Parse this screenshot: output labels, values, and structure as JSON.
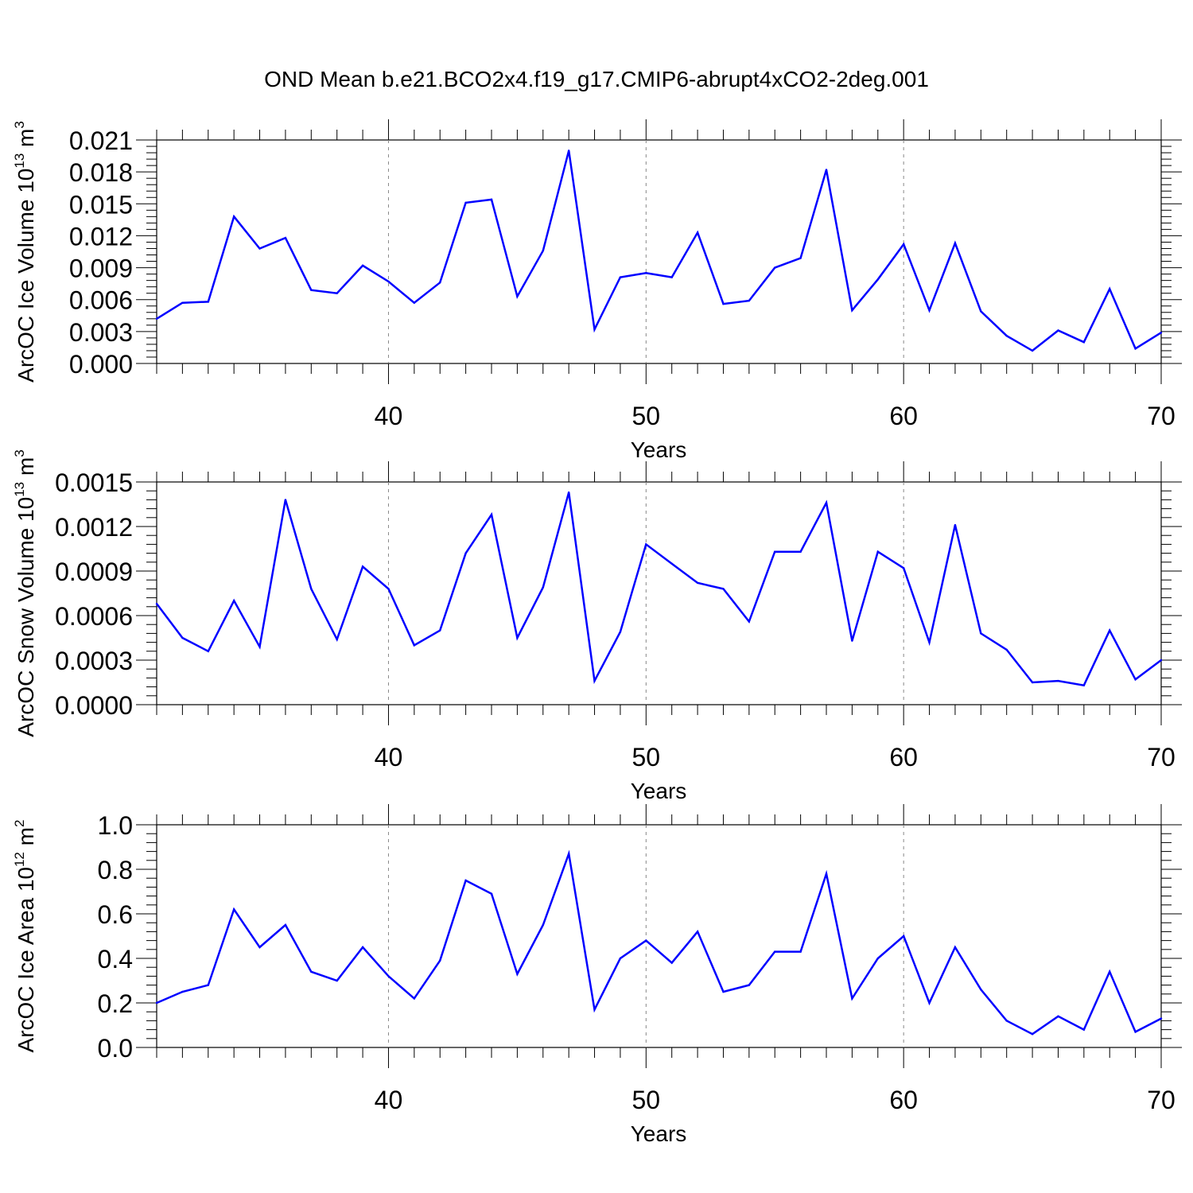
{
  "figure": {
    "title": "OND Mean b.e21.BCO2x4.f19_g17.CMIP6-abrupt4xCO2-2deg.001",
    "line_color": "#0000ff"
  },
  "chart_data": [
    {
      "type": "line",
      "ylabel": "ArcOC Ice Volume 10",
      "ylabel_sup": "13",
      "ylabel_unit": " m",
      "ylabel_unit_sup": "3",
      "xlabel": "Years",
      "xlim": [
        31,
        70
      ],
      "ylim": [
        0,
        0.021
      ],
      "yticks": [
        0,
        0.003,
        0.006,
        0.009,
        0.012,
        0.015,
        0.018,
        0.021
      ],
      "ytick_labels": [
        "0.000",
        "0.003",
        "0.006",
        "0.009",
        "0.012",
        "0.015",
        "0.018",
        "0.021"
      ],
      "xticks": [
        40,
        50,
        60,
        70
      ],
      "xtick_labels": [
        "40",
        "50",
        "60",
        "70"
      ],
      "x": [
        31,
        32,
        33,
        34,
        35,
        36,
        37,
        38,
        39,
        40,
        41,
        42,
        43,
        44,
        45,
        46,
        47,
        48,
        49,
        50,
        51,
        52,
        53,
        54,
        55,
        56,
        57,
        58,
        59,
        60,
        61,
        62,
        63,
        64,
        65,
        66,
        67,
        68,
        69,
        70
      ],
      "series": [
        {
          "values": [
            0.0042,
            0.0057,
            0.0058,
            0.0138,
            0.0108,
            0.0118,
            0.0069,
            0.0066,
            0.0092,
            0.0077,
            0.0057,
            0.0076,
            0.0151,
            0.0154,
            0.0063,
            0.0106,
            0.02,
            0.0032,
            0.0081,
            0.0085,
            0.0081,
            0.0123,
            0.0056,
            0.0059,
            0.009,
            0.0099,
            0.0182,
            0.005,
            0.0079,
            0.0112,
            0.005,
            0.0113,
            0.0049,
            0.0026,
            0.0012,
            0.0031,
            0.002,
            0.007,
            0.0014,
            0.0029
          ]
        }
      ]
    },
    {
      "type": "line",
      "ylabel": "ArcOC Snow Volume 10",
      "ylabel_sup": "13",
      "ylabel_unit": " m",
      "ylabel_unit_sup": "3",
      "xlabel": "Years",
      "xlim": [
        31,
        70
      ],
      "ylim": [
        0,
        0.0015
      ],
      "yticks": [
        0,
        0.0003,
        0.0006,
        0.0009,
        0.0012,
        0.0015
      ],
      "ytick_labels": [
        "0.0000",
        "0.0003",
        "0.0006",
        "0.0009",
        "0.0012",
        "0.0015"
      ],
      "xticks": [
        40,
        50,
        60,
        70
      ],
      "xtick_labels": [
        "40",
        "50",
        "60",
        "70"
      ],
      "x": [
        31,
        32,
        33,
        34,
        35,
        36,
        37,
        38,
        39,
        40,
        41,
        42,
        43,
        44,
        45,
        46,
        47,
        48,
        49,
        50,
        51,
        52,
        53,
        54,
        55,
        56,
        57,
        58,
        59,
        60,
        61,
        62,
        63,
        64,
        65,
        66,
        67,
        68,
        69,
        70
      ],
      "series": [
        {
          "values": [
            0.00068,
            0.00045,
            0.00036,
            0.0007,
            0.00039,
            0.00138,
            0.00078,
            0.00044,
            0.00093,
            0.00078,
            0.0004,
            0.0005,
            0.00102,
            0.00128,
            0.00045,
            0.00079,
            0.00143,
            0.00016,
            0.00049,
            0.00108,
            0.00095,
            0.00082,
            0.00078,
            0.00056,
            0.00103,
            0.00103,
            0.00136,
            0.00043,
            0.00103,
            0.00092,
            0.00042,
            0.00121,
            0.00048,
            0.00037,
            0.00015,
            0.00016,
            0.00013,
            0.0005,
            0.00017,
            0.0003
          ]
        }
      ]
    },
    {
      "type": "line",
      "ylabel": "ArcOC Ice Area 10",
      "ylabel_sup": "12",
      "ylabel_unit": " m",
      "ylabel_unit_sup": "2",
      "xlabel": "Years",
      "xlim": [
        31,
        70
      ],
      "ylim": [
        0,
        1.0
      ],
      "yticks": [
        0,
        0.2,
        0.4,
        0.6,
        0.8,
        1.0
      ],
      "ytick_labels": [
        "0.0",
        "0.2",
        "0.4",
        "0.6",
        "0.8",
        "1.0"
      ],
      "xticks": [
        40,
        50,
        60,
        70
      ],
      "xtick_labels": [
        "40",
        "50",
        "60",
        "70"
      ],
      "x": [
        31,
        32,
        33,
        34,
        35,
        36,
        37,
        38,
        39,
        40,
        41,
        42,
        43,
        44,
        45,
        46,
        47,
        48,
        49,
        50,
        51,
        52,
        53,
        54,
        55,
        56,
        57,
        58,
        59,
        60,
        61,
        62,
        63,
        64,
        65,
        66,
        67,
        68,
        69,
        70
      ],
      "series": [
        {
          "values": [
            0.2,
            0.25,
            0.28,
            0.62,
            0.45,
            0.55,
            0.34,
            0.3,
            0.45,
            0.32,
            0.22,
            0.39,
            0.75,
            0.69,
            0.33,
            0.55,
            0.87,
            0.17,
            0.4,
            0.48,
            0.38,
            0.52,
            0.25,
            0.28,
            0.43,
            0.43,
            0.78,
            0.22,
            0.4,
            0.5,
            0.2,
            0.45,
            0.26,
            0.12,
            0.06,
            0.14,
            0.08,
            0.34,
            0.07,
            0.13
          ]
        }
      ]
    }
  ]
}
